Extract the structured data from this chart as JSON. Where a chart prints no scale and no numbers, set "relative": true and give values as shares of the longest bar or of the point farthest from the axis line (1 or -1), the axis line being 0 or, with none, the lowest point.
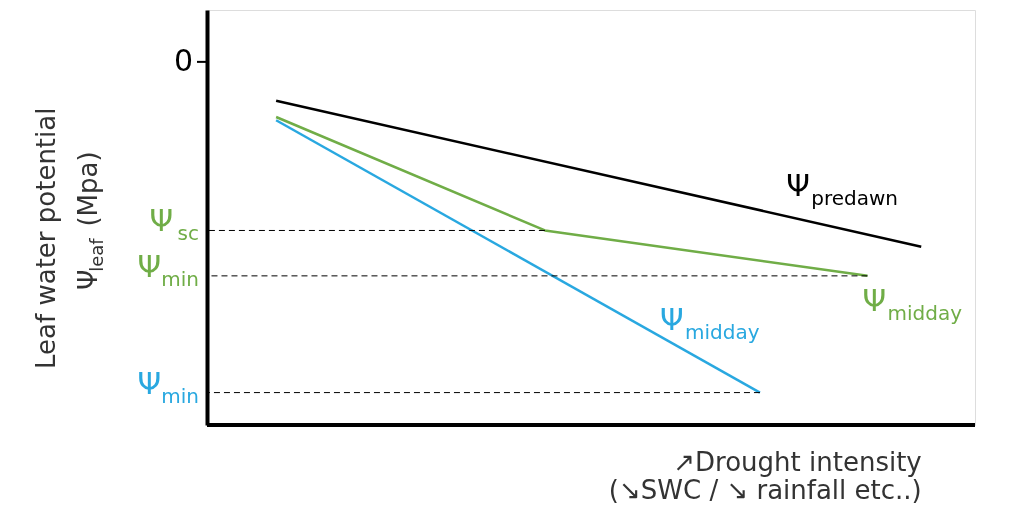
{
  "chart_data": {
    "type": "line",
    "relative": true,
    "xlabel": "↗Drought intensity\n(↘SWC / ↘ rainfall etc..)",
    "ylabel": "Leaf water potential\nΨ$_{leaf}$ (Mpa)",
    "categories": [
      null,
      null,
      null,
      null,
      null,
      null,
      null,
      null,
      null,
      null,
      null,
      null,
      null
    ],
    "series": [
      {
        "name": "Ψ$_{predawn}$",
        "color": "#000000",
        "values": [
          1,
          null,
          null,
          null,
          null,
          null,
          null,
          null,
          null,
          null,
          null,
          null,
          0.55
        ]
      },
      {
        "name": "Ψ$_{midday}$",
        "color": "#70ad47",
        "values": [
          0.95,
          null,
          null,
          null,
          null,
          0.6,
          null,
          null,
          null,
          null,
          null,
          0.46,
          null
        ]
      },
      {
        "name": "Ψ$_{midday}$",
        "color": "#29a8e0",
        "values": [
          0.94,
          null,
          null,
          null,
          null,
          null,
          null,
          null,
          null,
          0.1,
          null,
          null,
          null
        ]
      }
    ],
    "ref_lines": [
      {
        "axis": "y",
        "value": 0.6,
        "label": "Ψ$_{sc}$",
        "line_style": "dashed"
      },
      {
        "axis": "y",
        "value": 0.46,
        "label": "Ψ$_{min}$",
        "line_style": "dashed"
      },
      {
        "axis": "y",
        "value": 0.1,
        "label": "Ψ$_{min}$",
        "line_style": "dashed"
      }
    ],
    "annotations": [
      "0"
    ],
    "grid": false,
    "marker": "none",
    "line_style": "solid"
  }
}
